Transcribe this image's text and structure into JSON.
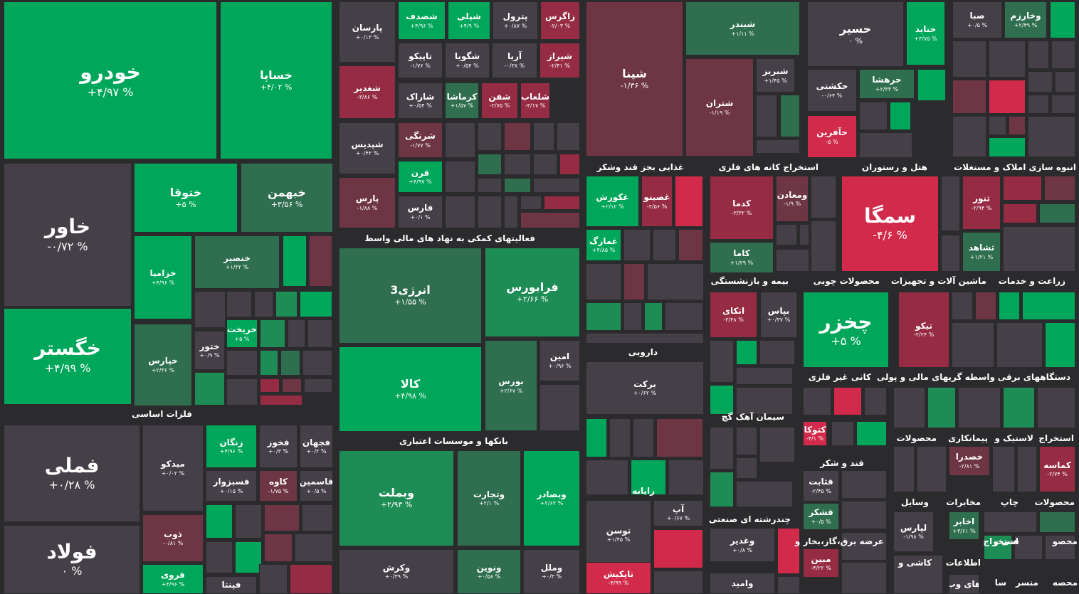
{
  "sectors": [
    {
      "key": "basic_metals",
      "label": "فلزات اساسی"
    },
    {
      "key": "auto",
      "label": "خودرو"
    },
    {
      "key": "financial",
      "label": "فعالیتهای کمکی به نهاد های مالی واسط"
    },
    {
      "key": "banks",
      "label": "بانکها و موسسات اعتباری"
    },
    {
      "key": "food",
      "label": "غذایی بجز قند وشکر"
    },
    {
      "key": "mining_metal",
      "label": "استخراج کانه های فلزی"
    },
    {
      "key": "hotel",
      "label": "هتل و رستوران"
    },
    {
      "key": "realestate",
      "label": "انبوه سازی املاک و مستغلات"
    },
    {
      "key": "insurance",
      "label": "بیمه و بازنشستگی"
    },
    {
      "key": "wood",
      "label": "محصولات چوبی"
    },
    {
      "key": "machinery",
      "label": "ماشین آلات و تجهیزات"
    },
    {
      "key": "agri",
      "label": "زراعت و خدمات"
    },
    {
      "key": "pharma",
      "label": "دارویی"
    },
    {
      "key": "cement",
      "label": "سیمان آهک گچ"
    },
    {
      "key": "nonmetal",
      "label": "کانی غیر فلزی"
    },
    {
      "key": "brokers",
      "label": "واسطه گریهای مالی و پولی"
    },
    {
      "key": "electric",
      "label": "دستگاههای برقی"
    },
    {
      "key": "computer",
      "label": "رایانه"
    },
    {
      "key": "sugar",
      "label": "قند و شکر"
    },
    {
      "key": "products",
      "label": "محصولات"
    },
    {
      "key": "contractors",
      "label": "پیمانکاری"
    },
    {
      "key": "tire",
      "label": "لاستیک و"
    },
    {
      "key": "extraction",
      "label": "استخراج"
    },
    {
      "key": "multi",
      "label": "چندرشته ای صنعتی"
    },
    {
      "key": "utilities",
      "label": "عرضه برق،گاز،بخار و"
    },
    {
      "key": "vehicles",
      "label": "وسایل"
    },
    {
      "key": "telecom",
      "label": "مخابرات"
    },
    {
      "key": "print",
      "label": "چاپ"
    },
    {
      "key": "products2",
      "label": "محصولات"
    },
    {
      "key": "tile",
      "label": "کاشی و"
    },
    {
      "key": "info",
      "label": "اطلاعات"
    },
    {
      "key": "tech",
      "label": "فنی و"
    },
    {
      "key": "extraction2",
      "label": "استخراج"
    },
    {
      "key": "engineering",
      "label": "محصو"
    },
    {
      "key": "misc",
      "label": "سا"
    },
    {
      "key": "misc2",
      "label": "منسر"
    },
    {
      "key": "misc3",
      "label": "محصه"
    }
  ],
  "tiles": [
    {
      "sym": "خودرو",
      "chg": "+۴/۹۷ %"
    },
    {
      "sym": "خساپا",
      "chg": "+۴/۰۲ %"
    },
    {
      "sym": "خاور",
      "chg": "-۰/۷۲ %"
    },
    {
      "sym": "ختوقا",
      "chg": "+۵ %"
    },
    {
      "sym": "خبهمن",
      "chg": "+۳/۵۶ %"
    },
    {
      "sym": "خزامیا",
      "chg": "+۴/۹۶ %"
    },
    {
      "sym": "خنصیر",
      "chg": "+۱/۳۲ %"
    },
    {
      "sym": "خگستر",
      "chg": "+۴/۹۹ %"
    },
    {
      "sym": "خپارس",
      "chg": "+۲/۳۶ %"
    },
    {
      "sym": "ختور",
      "chg": "+۰/۹ %"
    },
    {
      "sym": "خریخت",
      "chg": "+۵ %"
    },
    {
      "sym": "فملی",
      "chg": "+۰/۲۸ %"
    },
    {
      "sym": "میدکو",
      "chg": "+۰/۰۲ %"
    },
    {
      "sym": "زنگان",
      "chg": "+۴/۹۶ %"
    },
    {
      "sym": "فخوز",
      "chg": "+۰/۳ %"
    },
    {
      "sym": "فجهان",
      "chg": "+۰/۲ %"
    },
    {
      "sym": "فسبزوار",
      "chg": "+۰/۱۵ %"
    },
    {
      "sym": "کاوه",
      "chg": "-۱/۷۵ %"
    },
    {
      "sym": "فاسمین",
      "chg": "+۰/۵ %"
    },
    {
      "sym": "فولاد",
      "chg": "۰ %"
    },
    {
      "sym": "ذوب",
      "chg": "-۰/۸۱ %"
    },
    {
      "sym": "فروی",
      "chg": "+۴/۹۶ %"
    },
    {
      "sym": "فپنتا",
      "chg": ""
    },
    {
      "sym": "پارسان",
      "chg": "+۰/۱۳ %"
    },
    {
      "sym": "شصدف",
      "chg": "+۴/۹۶ %"
    },
    {
      "sym": "شپلی",
      "chg": "+۴/۹ %"
    },
    {
      "sym": "پترول",
      "chg": "+۰/۸۷ %"
    },
    {
      "sym": "زاگرس",
      "chg": "-۲/۰۳ %"
    },
    {
      "sym": "تاپیکو",
      "chg": "-۱/۷۶ %"
    },
    {
      "sym": "شگویا",
      "chg": "+۰/۵۴ %"
    },
    {
      "sym": "آریا",
      "chg": "-۰/۳۸ %"
    },
    {
      "sym": "شیراز",
      "chg": "-۲/۴۱ %"
    },
    {
      "sym": "شغدیر",
      "chg": "-۳/۸۶ %"
    },
    {
      "sym": "شاراک",
      "chg": "+۰/۵۴ %"
    },
    {
      "sym": "کرماشا",
      "chg": "+۱/۵۷ %"
    },
    {
      "sym": "شفن",
      "chg": "-۲/۷۵ %"
    },
    {
      "sym": "شلعاب",
      "chg": "-۳/۱۷ %"
    },
    {
      "sym": "شپدیس",
      "chg": "+۰/۴۳ %"
    },
    {
      "sym": "شرنگی",
      "chg": "-۱/۷۷ %"
    },
    {
      "sym": "قرن",
      "chg": "+۴/۹۷ %"
    },
    {
      "sym": "پارس",
      "chg": "-۱/۸۸ %"
    },
    {
      "sym": "فارس",
      "chg": "+۰/۱ %"
    },
    {
      "sym": "انرژی3",
      "chg": "+۱/۵۵ %"
    },
    {
      "sym": "فرابورس",
      "chg": "+۲/۶۶ %"
    },
    {
      "sym": "کالا",
      "chg": "+۴/۹۸ %"
    },
    {
      "sym": "بورس",
      "chg": "+۲/۶۷ %"
    },
    {
      "sym": "امین",
      "chg": "+۰/۹۶ %"
    },
    {
      "sym": "وبملت",
      "chg": "+۲/۹۳ %"
    },
    {
      "sym": "وتجارت",
      "chg": "+۲/۱ %"
    },
    {
      "sym": "وبصادر",
      "chg": "+۲/۶۲ %"
    },
    {
      "sym": "وکرش",
      "chg": "+۰/۳۹ %"
    },
    {
      "sym": "ونوین",
      "chg": "+۰/۵۸ %"
    },
    {
      "sym": "وملل",
      "chg": "+۰/۳ %"
    },
    {
      "sym": "شپنا",
      "chg": "-۱/۳۶ %"
    },
    {
      "sym": "شبندر",
      "chg": "+۱/۱۱ %"
    },
    {
      "sym": "شتران",
      "chg": "-۱/۱۹ %"
    },
    {
      "sym": "شبریز",
      "chg": "+۱/۴۵ %"
    },
    {
      "sym": "حسیر",
      "chg": "۰ %"
    },
    {
      "sym": "حتاید",
      "chg": "+۳/۷۵ %"
    },
    {
      "sym": "صبا",
      "chg": "+۰/۵ %"
    },
    {
      "sym": "وخارزم",
      "chg": "+۲/۴۹ %"
    },
    {
      "sym": "حکشتی",
      "chg": "-۰/۶۴ %"
    },
    {
      "sym": "حرهشا",
      "chg": "+۲/۳۳ %"
    },
    {
      "sym": "حآفرین",
      "chg": "-۵ %"
    },
    {
      "sym": "غکورش",
      "chg": "+۲/۱۲ %"
    },
    {
      "sym": "غصینو",
      "chg": "-۲/۵۶ %"
    },
    {
      "sym": "غمارگ",
      "chg": "+۴/۸۵ %"
    },
    {
      "sym": "کدما",
      "chg": "-۳/۳۲ %"
    },
    {
      "sym": "ومعادن",
      "chg": "-۱/۹ %"
    },
    {
      "sym": "کاما",
      "chg": "+۱/۲۹ %"
    },
    {
      "sym": "سمگا",
      "chg": "-۴/۶ %"
    },
    {
      "sym": "ثنور",
      "chg": "-۲/۹۴ %"
    },
    {
      "sym": "ثشاهد",
      "chg": "+۱/۲۱ %"
    },
    {
      "sym": "اتکای",
      "chg": "-۳/۴۸ %"
    },
    {
      "sym": "بپاس",
      "chg": "+۰/۳۷ %"
    },
    {
      "sym": "چخزر",
      "chg": "+۵ %"
    },
    {
      "sym": "تیکو",
      "chg": "-۲/۲۴ %"
    },
    {
      "sym": "برکت",
      "chg": "+۰/۶۲ %"
    },
    {
      "sym": "کتوکا",
      "chg": "-۴/۱ %"
    },
    {
      "sym": "خصدرا",
      "chg": "-۲/۸۱ %"
    },
    {
      "sym": "کماسه",
      "chg": "-۲/۷۴ %"
    },
    {
      "sym": "قثابت",
      "chg": "-۲/۴۵ %"
    },
    {
      "sym": "قشکر",
      "chg": "+۰/۵ %"
    },
    {
      "sym": "لپارس",
      "chg": "-۱/۹۸ %"
    },
    {
      "sym": "اخابر",
      "chg": "+۳/۶۱ %"
    },
    {
      "sym": "توسن",
      "chg": "+۱/۴۵ %"
    },
    {
      "sym": "آپ",
      "chg": "+۰/۶۷ %"
    },
    {
      "sym": "وغدیر",
      "chg": "+۰/۸ %"
    },
    {
      "sym": "مبین",
      "chg": "-۴/۲۲ %"
    },
    {
      "sym": "تاپکیش",
      "chg": "-۴/۹۹ %"
    },
    {
      "sym": "وامید",
      "chg": ""
    },
    {
      "sym": "های وب",
      "chg": ""
    }
  ],
  "colors": {
    "strong_green": "#00a65a",
    "green": "#1e8c55",
    "dark_green": "#2f6e4e",
    "neutral": "#453f48",
    "strong_red": "#d12a4a",
    "red": "#962b44",
    "dark_red": "#6e3544",
    "background": "#2b2b2e"
  }
}
